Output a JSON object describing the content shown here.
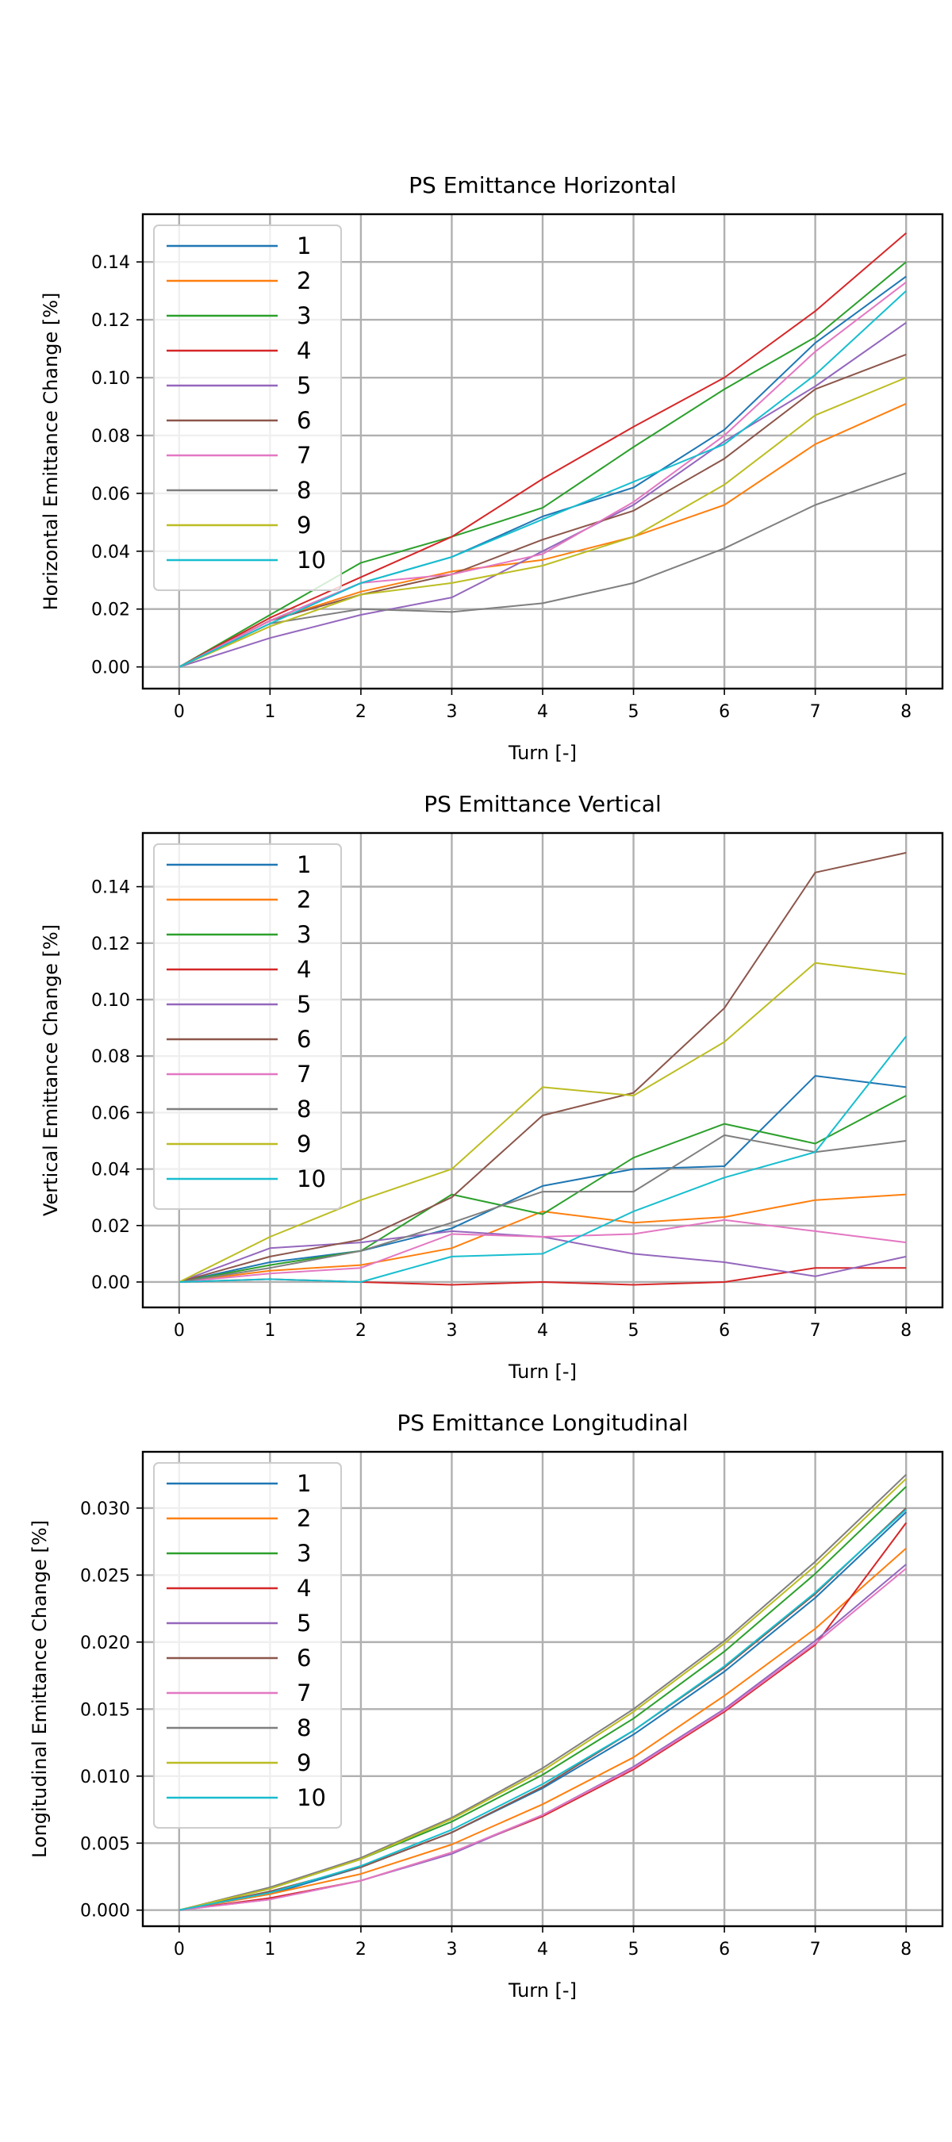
{
  "chart_data": [
    {
      "type": "line",
      "title": "PS Emittance Horizontal",
      "xlabel": "Turn [-]",
      "ylabel": "Horizontal Emittance Change [%]",
      "xlim": [
        -0.4,
        8.4
      ],
      "ylim": [
        -0.0075,
        0.1565
      ],
      "xticks": [
        "0",
        "1",
        "2",
        "3",
        "4",
        "5",
        "6",
        "7",
        "8"
      ],
      "yticks": [
        "0.00",
        "0.02",
        "0.04",
        "0.06",
        "0.08",
        "0.10",
        "0.12",
        "0.14"
      ],
      "grid": true,
      "legend_position": "top-left",
      "x": [
        0,
        1,
        2,
        3,
        4,
        5,
        6,
        7,
        8
      ],
      "series": [
        {
          "name": "1",
          "color": "#1f77b4",
          "values": [
            0,
            0.016,
            0.029,
            0.038,
            0.052,
            0.062,
            0.082,
            0.112,
            0.135
          ]
        },
        {
          "name": "2",
          "color": "#ff7f0e",
          "values": [
            0,
            0.016,
            0.026,
            0.033,
            0.037,
            0.045,
            0.056,
            0.077,
            0.091
          ]
        },
        {
          "name": "3",
          "color": "#2ca02c",
          "values": [
            0,
            0.018,
            0.036,
            0.045,
            0.055,
            0.076,
            0.096,
            0.114,
            0.14
          ]
        },
        {
          "name": "4",
          "color": "#d62728",
          "values": [
            0,
            0.017,
            0.031,
            0.045,
            0.065,
            0.083,
            0.1,
            0.123,
            0.15
          ]
        },
        {
          "name": "5",
          "color": "#9467bd",
          "values": [
            0,
            0.01,
            0.018,
            0.024,
            0.04,
            0.056,
            0.078,
            0.097,
            0.119
          ]
        },
        {
          "name": "6",
          "color": "#8c564b",
          "values": [
            0,
            0.016,
            0.025,
            0.032,
            0.044,
            0.054,
            0.072,
            0.096,
            0.108
          ]
        },
        {
          "name": "7",
          "color": "#e377c2",
          "values": [
            0,
            0.016,
            0.029,
            0.032,
            0.039,
            0.057,
            0.08,
            0.109,
            0.133
          ]
        },
        {
          "name": "8",
          "color": "#7f7f7f",
          "values": [
            0,
            0.015,
            0.02,
            0.019,
            0.022,
            0.029,
            0.041,
            0.056,
            0.067
          ]
        },
        {
          "name": "9",
          "color": "#bcbd22",
          "values": [
            0,
            0.014,
            0.025,
            0.029,
            0.035,
            0.045,
            0.063,
            0.087,
            0.1
          ]
        },
        {
          "name": "10",
          "color": "#17becf",
          "values": [
            0,
            0.015,
            0.029,
            0.038,
            0.051,
            0.064,
            0.077,
            0.101,
            0.13
          ]
        }
      ]
    },
    {
      "type": "line",
      "title": "PS Emittance Vertical",
      "xlabel": "Turn [-]",
      "ylabel": "Vertical Emittance Change [%]",
      "xlim": [
        -0.4,
        8.4
      ],
      "ylim": [
        -0.009,
        0.159
      ],
      "xticks": [
        "0",
        "1",
        "2",
        "3",
        "4",
        "5",
        "6",
        "7",
        "8"
      ],
      "yticks": [
        "0.00",
        "0.02",
        "0.04",
        "0.06",
        "0.08",
        "0.10",
        "0.12",
        "0.14"
      ],
      "grid": true,
      "legend_position": "top-left",
      "x": [
        0,
        1,
        2,
        3,
        4,
        5,
        6,
        7,
        8
      ],
      "series": [
        {
          "name": "1",
          "color": "#1f77b4",
          "values": [
            0,
            0.007,
            0.011,
            0.019,
            0.034,
            0.04,
            0.041,
            0.073,
            0.069
          ]
        },
        {
          "name": "2",
          "color": "#ff7f0e",
          "values": [
            0,
            0.004,
            0.006,
            0.012,
            0.025,
            0.021,
            0.023,
            0.029,
            0.031
          ]
        },
        {
          "name": "3",
          "color": "#2ca02c",
          "values": [
            0,
            0.006,
            0.011,
            0.031,
            0.024,
            0.044,
            0.056,
            0.049,
            0.066
          ]
        },
        {
          "name": "4",
          "color": "#d62728",
          "values": [
            0,
            0.001,
            0.0,
            -0.001,
            0.0,
            -0.001,
            0.0,
            0.005,
            0.005
          ]
        },
        {
          "name": "5",
          "color": "#9467bd",
          "values": [
            0,
            0.012,
            0.014,
            0.018,
            0.016,
            0.01,
            0.007,
            0.002,
            0.009
          ]
        },
        {
          "name": "6",
          "color": "#8c564b",
          "values": [
            0,
            0.009,
            0.015,
            0.03,
            0.059,
            0.067,
            0.097,
            0.145,
            0.152
          ]
        },
        {
          "name": "7",
          "color": "#e377c2",
          "values": [
            0,
            0.003,
            0.005,
            0.017,
            0.016,
            0.017,
            0.022,
            0.018,
            0.014
          ]
        },
        {
          "name": "8",
          "color": "#7f7f7f",
          "values": [
            0,
            0.005,
            0.011,
            0.021,
            0.032,
            0.032,
            0.052,
            0.046,
            0.05
          ]
        },
        {
          "name": "9",
          "color": "#bcbd22",
          "values": [
            0,
            0.016,
            0.029,
            0.04,
            0.069,
            0.066,
            0.085,
            0.113,
            0.109
          ]
        },
        {
          "name": "10",
          "color": "#17becf",
          "values": [
            0,
            0.001,
            0.0,
            0.009,
            0.01,
            0.025,
            0.037,
            0.046,
            0.087
          ]
        }
      ]
    },
    {
      "type": "line",
      "title": "PS Emittance Longitudinal",
      "xlabel": "Turn [-]",
      "ylabel": "Longitudinal Emittance Change [%]",
      "xlim": [
        -0.4,
        8.4
      ],
      "ylim": [
        -0.0012,
        0.0342
      ],
      "xticks": [
        "0",
        "1",
        "2",
        "3",
        "4",
        "5",
        "6",
        "7",
        "8"
      ],
      "yticks": [
        "0.000",
        "0.005",
        "0.010",
        "0.015",
        "0.020",
        "0.025",
        "0.030"
      ],
      "grid": true,
      "legend_position": "top-left",
      "x": [
        0,
        1,
        2,
        3,
        4,
        5,
        6,
        7,
        8
      ],
      "series": [
        {
          "name": "1",
          "color": "#1f77b4",
          "values": [
            0,
            0.0012,
            0.0032,
            0.0058,
            0.0091,
            0.0131,
            0.0178,
            0.0233,
            0.0297
          ]
        },
        {
          "name": "2",
          "color": "#ff7f0e",
          "values": [
            0,
            0.0012,
            0.0027,
            0.0049,
            0.0079,
            0.0114,
            0.016,
            0.021,
            0.027
          ]
        },
        {
          "name": "3",
          "color": "#2ca02c",
          "values": [
            0,
            0.0016,
            0.0038,
            0.0066,
            0.0101,
            0.0143,
            0.0193,
            0.0251,
            0.0316
          ]
        },
        {
          "name": "4",
          "color": "#d62728",
          "values": [
            0,
            0.0009,
            0.0022,
            0.0043,
            0.007,
            0.0105,
            0.0148,
            0.0198,
            0.0289
          ]
        },
        {
          "name": "5",
          "color": "#9467bd",
          "values": [
            0,
            0.0008,
            0.0022,
            0.0042,
            0.0071,
            0.0107,
            0.015,
            0.0201,
            0.0258
          ]
        },
        {
          "name": "6",
          "color": "#8c564b",
          "values": [
            0,
            0.0014,
            0.0032,
            0.0058,
            0.0092,
            0.0134,
            0.0181,
            0.0236,
            0.03
          ]
        },
        {
          "name": "7",
          "color": "#e377c2",
          "values": [
            0,
            0.0008,
            0.0022,
            0.0043,
            0.0071,
            0.0106,
            0.0149,
            0.0199,
            0.0255
          ]
        },
        {
          "name": "8",
          "color": "#7f7f7f",
          "values": [
            0,
            0.0017,
            0.0039,
            0.0069,
            0.0106,
            0.015,
            0.0201,
            0.026,
            0.0325
          ]
        },
        {
          "name": "9",
          "color": "#bcbd22",
          "values": [
            0,
            0.0016,
            0.0038,
            0.0068,
            0.0104,
            0.0148,
            0.0199,
            0.0257,
            0.0322
          ]
        },
        {
          "name": "10",
          "color": "#17becf",
          "values": [
            0,
            0.0013,
            0.0033,
            0.006,
            0.0094,
            0.0134,
            0.0182,
            0.0237,
            0.0299
          ]
        }
      ]
    }
  ]
}
